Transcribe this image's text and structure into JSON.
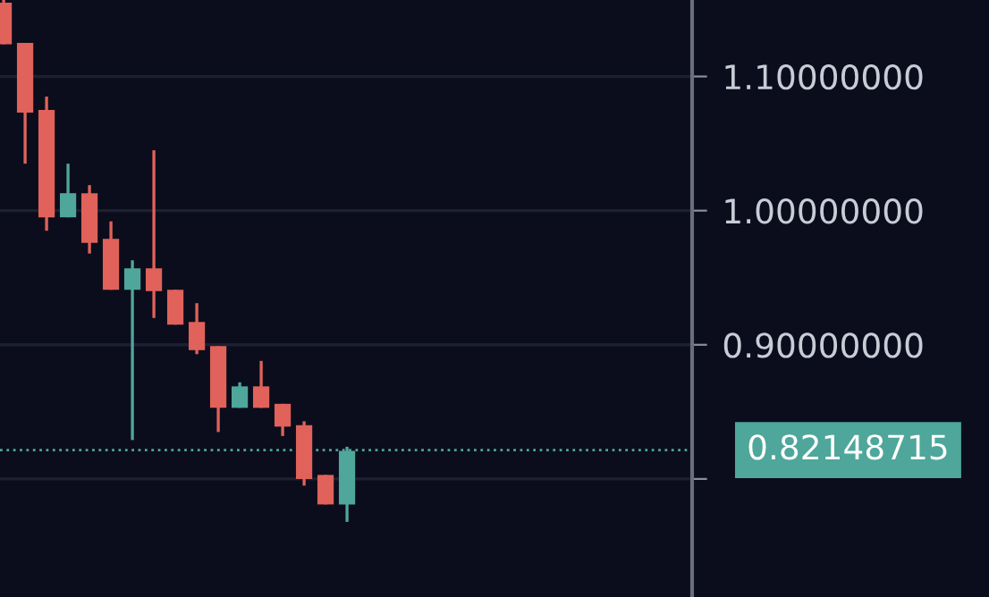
{
  "chart_data": {
    "type": "candlestick",
    "categories": [
      null,
      null,
      null,
      null,
      null,
      null,
      null,
      null,
      null,
      null,
      null,
      null,
      null,
      null,
      null,
      null,
      null,
      null,
      null,
      null,
      null,
      null,
      null,
      null,
      null,
      null,
      null,
      null,
      null,
      null,
      null,
      null
    ],
    "ohlc": [
      [
        1.155,
        1.157,
        1.124,
        1.124
      ],
      [
        1.125,
        1.125,
        1.035,
        1.073
      ],
      [
        1.075,
        1.085,
        0.985,
        0.995
      ],
      [
        0.995,
        1.035,
        0.995,
        1.013
      ],
      [
        1.013,
        1.019,
        0.968,
        0.976
      ],
      [
        0.979,
        0.992,
        0.941,
        0.941
      ],
      [
        0.941,
        0.963,
        0.829,
        0.957
      ],
      [
        0.957,
        1.045,
        0.92,
        0.94
      ],
      [
        0.941,
        0.941,
        0.915,
        0.915
      ],
      [
        0.917,
        0.931,
        0.893,
        0.896
      ],
      [
        0.899,
        0.899,
        0.835,
        0.853
      ],
      [
        0.853,
        0.872,
        0.853,
        0.869
      ],
      [
        0.869,
        0.888,
        0.853,
        0.853
      ],
      [
        0.856,
        0.856,
        0.832,
        0.839
      ],
      [
        0.84,
        0.843,
        0.795,
        0.8
      ],
      [
        0.803,
        0.803,
        0.781,
        0.781
      ],
      [
        0.781,
        0.824,
        0.768,
        0.821
      ],
      null,
      null,
      null,
      null,
      null,
      null,
      null,
      null,
      null,
      null,
      null,
      null,
      null,
      null,
      null
    ],
    "colors": [
      "#e0625a",
      "#e0625a",
      "#e0625a",
      "#4fa69a",
      "#e0625a",
      "#e0625a",
      "#4fa69a",
      "#e0625a",
      "#e0625a",
      "#e0625a",
      "#e0625a",
      "#4fa69a",
      "#e0625a",
      "#e0625a",
      "#e0625a",
      "#e0625a",
      "#4fa69a",
      null,
      null,
      null,
      null,
      null,
      null,
      null,
      null,
      null,
      null,
      null,
      null,
      null,
      null,
      null
    ],
    "ylim": [
      0.712,
      1.157
    ],
    "yticks": [
      {
        "value": 0.8,
        "label": null
      },
      {
        "value": 0.9,
        "label": "0.90000000"
      },
      {
        "value": 1.0,
        "label": "1.00000000"
      },
      {
        "value": 1.1,
        "label": "1.10000000"
      }
    ],
    "grid": "y",
    "ref_lines": [
      {
        "axis": "y",
        "value": 0.82148715,
        "label": "0.82148715",
        "color": "#4fa69a",
        "line_style": "dotted"
      }
    ]
  }
}
